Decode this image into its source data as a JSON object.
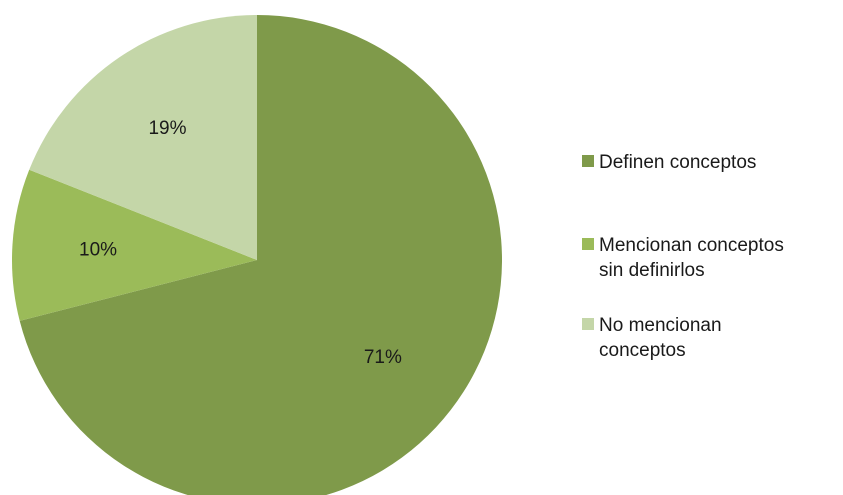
{
  "chart_data": {
    "type": "pie",
    "title": "",
    "categories": [
      "Definen conceptos",
      "Mencionan conceptos sin definirlos",
      "No mencionan conceptos"
    ],
    "values": [
      71,
      10,
      19
    ],
    "data_labels": [
      "71%",
      "10%",
      "19%"
    ],
    "colors": [
      "#7f9a4a",
      "#9bbb59",
      "#c4d6a8"
    ],
    "start": "12 o'clock",
    "direction": "clockwise",
    "legend": {
      "position": "right",
      "lines": [
        [
          "Definen conceptos"
        ],
        [
          "Mencionan conceptos",
          "sin definirlos"
        ],
        [
          "No mencionan",
          "conceptos"
        ]
      ]
    }
  }
}
